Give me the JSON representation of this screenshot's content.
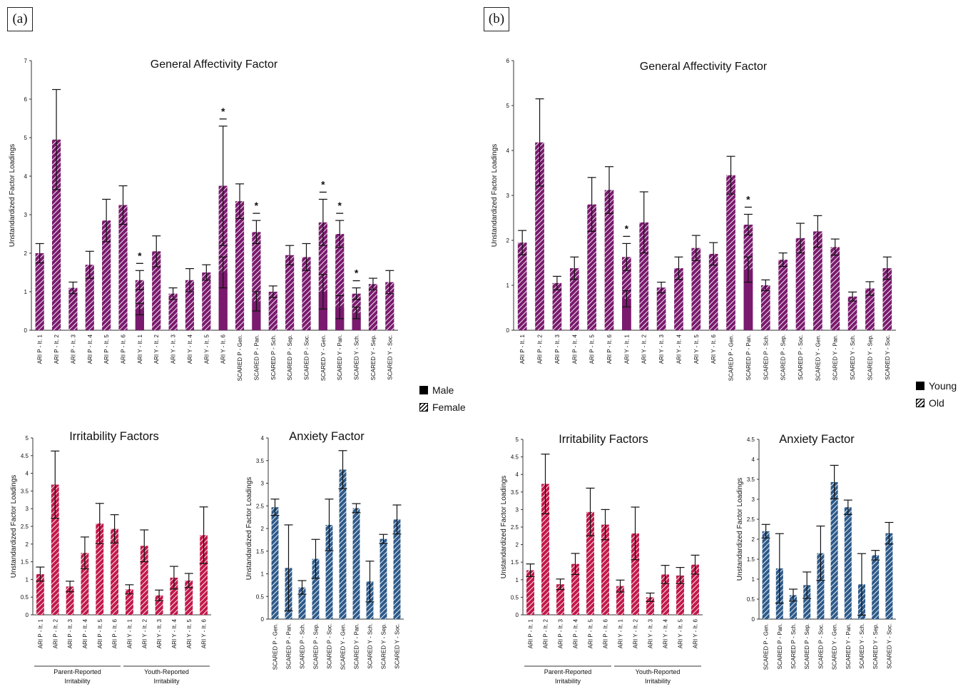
{
  "panels": [
    {
      "label": "(a)",
      "legend": [
        {
          "label": "Male",
          "pattern": "solid"
        },
        {
          "label": "Female",
          "pattern": "hatch"
        }
      ]
    },
    {
      "label": "(b)",
      "legend": [
        {
          "label": "Young",
          "pattern": "solid"
        },
        {
          "label": "Old",
          "pattern": "hatch"
        }
      ]
    }
  ],
  "colors": {
    "general": "#7a1a6e",
    "irritability": "#c2184a",
    "anxiety": "#2d5a8a",
    "ink": "#111111"
  },
  "chart_data": [
    {
      "id": "a_general",
      "panel": "(a)",
      "type": "bar",
      "title": "General Affectivity Factor",
      "ylabel": "Unstandardized Factor Loadings",
      "ylim": [
        0,
        7
      ],
      "yticks": [
        0,
        1,
        2,
        3,
        4,
        5,
        6,
        7
      ],
      "color_key": "general",
      "categories": [
        "ARI P - It. 1",
        "ARI P - It. 2",
        "ARI P - It. 3",
        "ARI P - It. 4",
        "ARI P - It. 5",
        "ARI P - It. 6",
        "ARI Y - It. 1",
        "ARI Y - It. 2",
        "ARI Y - It. 3",
        "ARI Y - It. 4",
        "ARI Y - It. 5",
        "ARI Y - It. 6",
        "SCARED P - Gen.",
        "SCARED P - Pan.",
        "SCARED P - Sch.",
        "SCARED P - Sep.",
        "SCARED P - Soc.",
        "SCARED Y - Gen.",
        "SCARED Y - Pan.",
        "SCARED Y - Sch.",
        "SCARED Y - Sep.",
        "SCARED Y - Soc."
      ],
      "series": [
        {
          "name": "Male",
          "pattern": "solid",
          "values": [
            2.0,
            4.95,
            1.1,
            1.7,
            2.85,
            3.25,
            0.55,
            2.05,
            0.95,
            1.3,
            1.5,
            1.5,
            3.35,
            0.75,
            1.0,
            1.95,
            1.9,
            1.0,
            0.6,
            0.45,
            1.2,
            1.25
          ],
          "errors": [
            0.25,
            1.3,
            0.15,
            0.35,
            0.55,
            0.5,
            0.15,
            0.4,
            0.15,
            0.3,
            0.2,
            0.4,
            0.45,
            0.25,
            0.15,
            0.25,
            0.35,
            0.45,
            0.3,
            0.15,
            0.15,
            0.3
          ]
        },
        {
          "name": "Female",
          "pattern": "hatch",
          "values": [
            2.0,
            4.95,
            1.1,
            1.7,
            2.85,
            3.25,
            1.3,
            2.05,
            0.95,
            1.3,
            1.5,
            3.75,
            3.35,
            2.55,
            1.0,
            1.95,
            1.9,
            2.8,
            2.5,
            0.95,
            1.2,
            1.25
          ],
          "errors": [
            0.25,
            1.3,
            0.15,
            0.35,
            0.55,
            0.5,
            0.25,
            0.4,
            0.15,
            0.3,
            0.2,
            1.55,
            0.45,
            0.3,
            0.15,
            0.25,
            0.35,
            0.6,
            0.35,
            0.15,
            0.15,
            0.3
          ]
        }
      ],
      "significance": [
        6,
        11,
        13,
        17,
        18,
        19
      ]
    },
    {
      "id": "a_irritability",
      "panel": "(a)",
      "type": "bar",
      "title": "Irritability Factors",
      "ylabel": "Unstandardized Factor Loadings",
      "ylim": [
        0,
        5
      ],
      "yticks": [
        0,
        0.5,
        1,
        1.5,
        2,
        2.5,
        3,
        3.5,
        4,
        4.5,
        5
      ],
      "color_key": "irritability",
      "categories": [
        "ARI P - It. 1",
        "ARI P - It. 2",
        "ARI P - It. 3",
        "ARI P - It. 4",
        "ARI P - It. 5",
        "ARI P - It. 6",
        "ARI Y - It. 1",
        "ARI Y - It. 2",
        "ARI Y - It. 3",
        "ARI Y - It. 4",
        "ARI Y - It. 5",
        "ARI Y - It. 6"
      ],
      "values": [
        1.15,
        3.68,
        0.8,
        1.75,
        2.58,
        2.43,
        0.72,
        1.95,
        0.55,
        1.05,
        0.97,
        2.25
      ],
      "errors": [
        0.2,
        0.95,
        0.15,
        0.45,
        0.57,
        0.4,
        0.13,
        0.45,
        0.15,
        0.32,
        0.2,
        0.8
      ],
      "groups": [
        {
          "label": "Parent-Reported Irritability",
          "from": 0,
          "to": 5
        },
        {
          "label": "Youth-Reported Irritability",
          "from": 6,
          "to": 11
        }
      ],
      "significance": []
    },
    {
      "id": "a_anxiety",
      "panel": "(a)",
      "type": "bar",
      "title": "Anxiety Factor",
      "ylabel": "Unstandardized Factor Loadings",
      "ylim": [
        0,
        4
      ],
      "yticks": [
        0,
        0.5,
        1,
        1.5,
        2,
        2.5,
        3,
        3.5,
        4
      ],
      "color_key": "anxiety",
      "categories": [
        "SCARED P - Gen.",
        "SCARED P - Pan.",
        "SCARED P - Sch.",
        "SCARED P - Sep.",
        "SCARED P - Soc.",
        "SCARED Y - Gen.",
        "SCARED Y - Pan.",
        "SCARED Y - Sch.",
        "SCARED Y - Sep.",
        "SCARED Y - Soc."
      ],
      "values": [
        2.47,
        1.13,
        0.7,
        1.33,
        2.08,
        3.3,
        2.45,
        0.83,
        1.77,
        2.2
      ],
      "errors": [
        0.18,
        0.95,
        0.15,
        0.43,
        0.57,
        0.42,
        0.1,
        0.45,
        0.1,
        0.32
      ],
      "significance": []
    },
    {
      "id": "b_general",
      "panel": "(b)",
      "type": "bar",
      "title": "General Affectivity Factor",
      "ylabel": "Unstandardized Factor Loadings",
      "ylim": [
        0,
        6
      ],
      "yticks": [
        0,
        1,
        2,
        3,
        4,
        5,
        6
      ],
      "color_key": "general",
      "categories": [
        "ARI P - It. 1",
        "ARI P - It. 2",
        "ARI P - It. 3",
        "ARI P - It. 4",
        "ARI P - It. 5",
        "ARI P - It. 6",
        "ARI Y - It. 1",
        "ARI Y - It. 2",
        "ARI Y - It. 3",
        "ARI Y - It. 4",
        "ARI Y - It. 5",
        "ARI Y - It. 6",
        "SCARED P - Gen.",
        "SCARED P - Pan.",
        "SCARED P - Sch.",
        "SCARED P - Sep.",
        "SCARED P - Soc.",
        "SCARED Y - Gen.",
        "SCARED Y - Pan.",
        "SCARED Y - Sch.",
        "SCARED Y - Sep.",
        "SCARED Y - Soc."
      ],
      "series": [
        {
          "name": "Young",
          "pattern": "solid",
          "values": [
            1.95,
            4.18,
            1.05,
            1.38,
            2.8,
            3.12,
            0.7,
            2.4,
            0.95,
            1.38,
            1.83,
            1.7,
            3.45,
            1.35,
            1.0,
            1.57,
            2.05,
            2.2,
            1.85,
            0.75,
            0.93,
            1.38
          ],
          "errors": [
            0.27,
            0.97,
            0.15,
            0.25,
            0.6,
            0.52,
            0.18,
            0.68,
            0.12,
            0.25,
            0.28,
            0.25,
            0.42,
            0.28,
            0.12,
            0.15,
            0.33,
            0.35,
            0.18,
            0.1,
            0.15,
            0.25
          ]
        },
        {
          "name": "Old",
          "pattern": "hatch",
          "values": [
            1.95,
            4.18,
            1.05,
            1.38,
            2.8,
            3.12,
            1.63,
            2.4,
            0.95,
            1.38,
            1.83,
            1.7,
            3.45,
            2.35,
            1.0,
            1.57,
            2.05,
            2.2,
            1.85,
            0.75,
            0.93,
            1.38
          ],
          "errors": [
            0.27,
            0.97,
            0.15,
            0.25,
            0.6,
            0.52,
            0.3,
            0.68,
            0.12,
            0.25,
            0.28,
            0.25,
            0.42,
            0.23,
            0.12,
            0.15,
            0.33,
            0.35,
            0.18,
            0.1,
            0.15,
            0.25
          ]
        }
      ],
      "significance": [
        6,
        13
      ]
    },
    {
      "id": "b_irritability",
      "panel": "(b)",
      "type": "bar",
      "title": "Irritability Factors",
      "ylabel": "Unstandardized Factor Loadings",
      "ylim": [
        0,
        5
      ],
      "yticks": [
        0,
        0.5,
        1,
        1.5,
        2,
        2.5,
        3,
        3.5,
        4,
        4.5,
        5
      ],
      "color_key": "irritability",
      "categories": [
        "ARI P - It. 1",
        "ARI P - It. 2",
        "ARI P - It. 3",
        "ARI P - It. 4",
        "ARI P - It. 5",
        "ARI P - It. 6",
        "ARI Y - It. 1",
        "ARI Y - It. 2",
        "ARI Y - It. 3",
        "ARI Y - It. 4",
        "ARI Y - It. 5",
        "ARI Y - It. 6"
      ],
      "values": [
        1.27,
        3.73,
        0.87,
        1.45,
        2.93,
        2.57,
        0.82,
        2.32,
        0.5,
        1.15,
        1.12,
        1.43
      ],
      "errors": [
        0.18,
        0.85,
        0.15,
        0.3,
        0.68,
        0.43,
        0.17,
        0.75,
        0.12,
        0.26,
        0.23,
        0.27
      ],
      "groups": [
        {
          "label": "Parent-Reported Irritability",
          "from": 0,
          "to": 5
        },
        {
          "label": "Youth-Reported Irritability",
          "from": 6,
          "to": 11
        }
      ],
      "significance": []
    },
    {
      "id": "b_anxiety",
      "panel": "(b)",
      "type": "bar",
      "title": "Anxiety Factor",
      "ylabel": "Unstandardized Factor Loadings",
      "ylim": [
        0,
        4.5
      ],
      "yticks": [
        0,
        0.5,
        1,
        1.5,
        2,
        2.5,
        3,
        3.5,
        4,
        4.5
      ],
      "color_key": "anxiety",
      "categories": [
        "SCARED P - Gen.",
        "SCARED P - Pan.",
        "SCARED P - Sch.",
        "SCARED P - Sep.",
        "SCARED P - Soc.",
        "SCARED Y - Gen.",
        "SCARED Y - Pan.",
        "SCARED Y - Sch.",
        "SCARED Y - Sep.",
        "SCARED Y - Soc."
      ],
      "values": [
        2.2,
        1.27,
        0.6,
        0.85,
        1.65,
        3.43,
        2.8,
        0.87,
        1.6,
        2.15
      ],
      "errors": [
        0.17,
        0.87,
        0.15,
        0.33,
        0.68,
        0.42,
        0.18,
        0.77,
        0.12,
        0.27
      ],
      "significance": []
    }
  ]
}
